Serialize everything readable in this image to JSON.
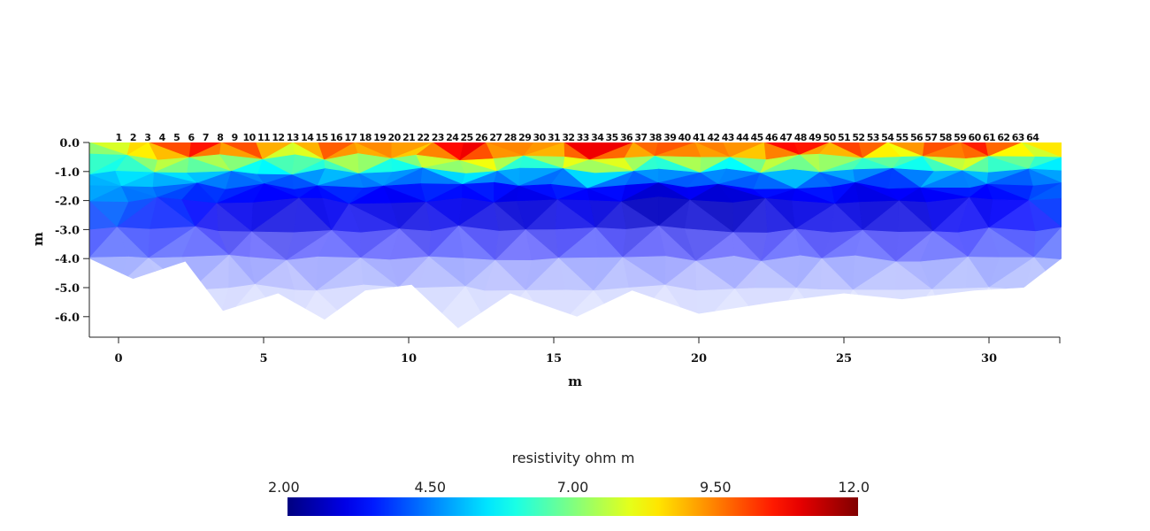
{
  "chart_data": {
    "type": "heatmap",
    "title": "",
    "xlabel": "m",
    "ylabel": "m",
    "xlim": [
      -1,
      32.5
    ],
    "ylim": [
      -6.7,
      0.0
    ],
    "x_ticks": [
      0,
      5,
      10,
      15,
      20,
      25,
      30
    ],
    "x_tick_labels": [
      "0",
      "5",
      "10",
      "15",
      "20",
      "25",
      "30"
    ],
    "y_ticks": [
      0,
      -1,
      -2,
      -3,
      -4,
      -5,
      -6
    ],
    "y_tick_labels": [
      "0.0",
      "-1.0",
      "-2.0",
      "-3.0",
      "-4.0",
      "-5.0",
      "-6.0"
    ],
    "electrodes": {
      "labels": [
        "1",
        "2",
        "3",
        "4",
        "5",
        "6",
        "7",
        "8",
        "9",
        "10",
        "11",
        "12",
        "13",
        "14",
        "15",
        "16",
        "17",
        "18",
        "19",
        "20",
        "21",
        "22",
        "23",
        "24",
        "25",
        "26",
        "27",
        "28",
        "29",
        "30",
        "31",
        "32",
        "33",
        "34",
        "35",
        "36",
        "37",
        "38",
        "39",
        "40",
        "41",
        "42",
        "43",
        "44",
        "45",
        "46",
        "47",
        "48",
        "49",
        "50",
        "51",
        "52",
        "53",
        "54",
        "55",
        "56",
        "57",
        "58",
        "59",
        "60",
        "61",
        "62",
        "63",
        "64"
      ],
      "first_x": 0.0,
      "spacing": 0.5
    },
    "colorbar": {
      "label": "resistivity ohm m",
      "min": 2.0,
      "max": 12.0,
      "ticks": [
        2.0,
        4.5,
        7.0,
        9.5,
        12.0
      ],
      "tick_labels": [
        "2.00",
        "4.50",
        "7.00",
        "9.50",
        "12.0"
      ],
      "colormap": "jet"
    },
    "bottom_boundary": {
      "x": [
        -1.0,
        0.5,
        2.3,
        3.6,
        5.5,
        7.1,
        8.5,
        10.1,
        11.7,
        13.5,
        15.8,
        17.7,
        20.0,
        22.6,
        25.0,
        27.0,
        29.5,
        31.2,
        32.5
      ],
      "y": [
        -4.0,
        -4.7,
        -4.1,
        -5.8,
        -5.2,
        -6.1,
        -5.1,
        -4.9,
        -6.4,
        -5.2,
        -6.0,
        -5.1,
        -5.9,
        -5.5,
        -5.2,
        -5.4,
        -5.1,
        -5.0,
        -4.0
      ]
    },
    "resistivity_layers": [
      {
        "depth": 0.0,
        "values": [
          7.8,
          8.6,
          10.0,
          11.3,
          11.7,
          10.6,
          8.9,
          10.2,
          11.4,
          9.5,
          10.8,
          11.8,
          11.5,
          9.4,
          11.0,
          11.9,
          11.1,
          10.3,
          11.6,
          9.8,
          11.0,
          11.8,
          10.6,
          11.2,
          9.6,
          10.4,
          11.7,
          11.3,
          9.5,
          9.0
        ]
      },
      {
        "depth": -0.5,
        "values": [
          6.4,
          7.2,
          8.0,
          8.7,
          8.3,
          7.6,
          7.0,
          7.9,
          8.5,
          7.3,
          8.2,
          9.4,
          9.0,
          7.4,
          8.6,
          9.7,
          8.4,
          7.8,
          8.9,
          7.1,
          8.3,
          9.2,
          7.8,
          8.5,
          7.0,
          7.8,
          9.1,
          8.4,
          7.0,
          6.9
        ]
      },
      {
        "depth": -1.0,
        "values": [
          5.2,
          5.5,
          6.1,
          6.0,
          5.3,
          4.7,
          4.8,
          5.6,
          5.8,
          4.9,
          5.6,
          6.5,
          6.0,
          5.2,
          5.8,
          6.5,
          5.8,
          5.0,
          5.6,
          4.8,
          5.4,
          6.0,
          5.4,
          5.6,
          4.6,
          5.3,
          6.1,
          5.5,
          4.9,
          5.0
        ]
      },
      {
        "depth": -1.5,
        "values": [
          5.0,
          4.8,
          4.6,
          4.2,
          3.9,
          3.7,
          3.6,
          3.8,
          3.9,
          3.6,
          3.8,
          4.0,
          3.7,
          3.5,
          3.7,
          3.9,
          3.5,
          3.3,
          3.5,
          3.4,
          3.6,
          3.8,
          3.6,
          3.5,
          3.4,
          3.6,
          3.8,
          3.7,
          3.9,
          4.6
        ]
      },
      {
        "depth": -2.0,
        "values": [
          4.8,
          4.4,
          4.0,
          3.6,
          3.2,
          3.1,
          3.0,
          3.1,
          3.2,
          2.9,
          3.0,
          3.1,
          2.8,
          2.8,
          2.9,
          3.0,
          2.6,
          2.5,
          2.6,
          2.5,
          2.7,
          2.9,
          2.9,
          2.8,
          2.7,
          2.9,
          3.1,
          3.0,
          3.4,
          4.4
        ]
      },
      {
        "depth": -3.0,
        "values": [
          3.4,
          3.4,
          3.4,
          3.2,
          3.0,
          2.9,
          2.9,
          3.0,
          3.1,
          2.9,
          3.0,
          3.1,
          3.0,
          2.9,
          3.0,
          3.1,
          2.9,
          2.8,
          2.9,
          2.9,
          3.0,
          3.1,
          3.0,
          3.1,
          3.0,
          3.1,
          3.2,
          3.2,
          3.3,
          3.5
        ]
      },
      {
        "depth": -4.0,
        "values": [
          3.6,
          3.6,
          3.6,
          3.5,
          3.4,
          3.4,
          3.4,
          3.4,
          3.5,
          3.4,
          3.4,
          3.5,
          3.4,
          3.4,
          3.4,
          3.5,
          3.4,
          3.4,
          3.4,
          3.4,
          3.4,
          3.5,
          3.4,
          3.5,
          3.4,
          3.5,
          3.5,
          3.5,
          3.6,
          3.6
        ]
      },
      {
        "depth": -5.0,
        "values": [
          3.6,
          3.6,
          3.6,
          3.6,
          3.5,
          3.5,
          3.5,
          3.5,
          3.6,
          3.5,
          3.5,
          3.6,
          3.5,
          3.5,
          3.5,
          3.6,
          3.5,
          3.5,
          3.5,
          3.5,
          3.5,
          3.6,
          3.5,
          3.6,
          3.5,
          3.6,
          3.6,
          3.6,
          3.6,
          3.6
        ]
      },
      {
        "depth": -6.5,
        "values": [
          3.6,
          3.6,
          3.6,
          3.6,
          3.6,
          3.6,
          3.6,
          3.6,
          3.6,
          3.6,
          3.6,
          3.6,
          3.6,
          3.6,
          3.6,
          3.6,
          3.6,
          3.6,
          3.6,
          3.6,
          3.6,
          3.6,
          3.6,
          3.6,
          3.6,
          3.6,
          3.6,
          3.6,
          3.6,
          3.6
        ]
      }
    ],
    "coverage_alpha_by_depth": {
      "depths": [
        0.0,
        -2.0,
        -3.0,
        -4.0,
        -5.0,
        -6.5
      ],
      "alpha": [
        1.0,
        1.0,
        0.75,
        0.42,
        0.18,
        0.08
      ]
    }
  }
}
